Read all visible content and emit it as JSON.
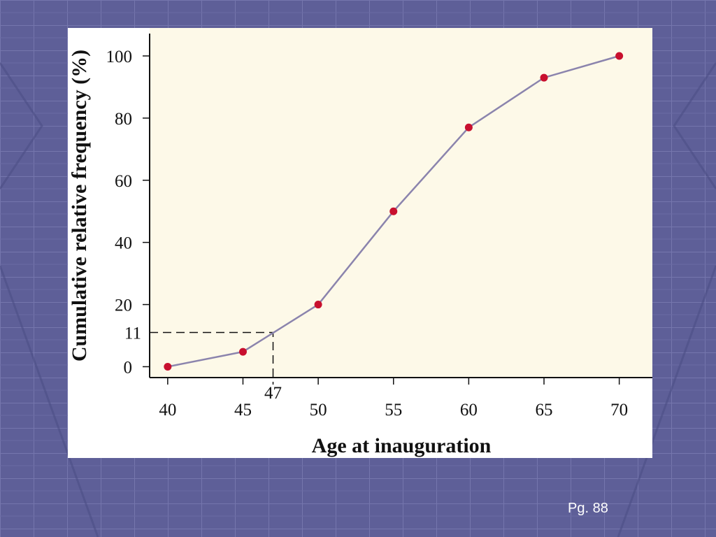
{
  "slide": {
    "page_label": "Pg. 88",
    "colors": {
      "background": "#5e5f98",
      "plot_background": "#fdf9e8",
      "line": "#8b84ad",
      "marker": "#c8102e"
    }
  },
  "chart_data": {
    "type": "line",
    "title": "",
    "xlabel": "Age at inauguration",
    "ylabel": "Cumulative relative frequency (%)",
    "xlim": [
      38.8,
      72.2
    ],
    "ylim": [
      -3.5,
      109
    ],
    "x_ticks": [
      40,
      45,
      50,
      55,
      60,
      65,
      70
    ],
    "x_tick_labels": [
      "40",
      "45",
      "50",
      "55",
      "60",
      "65",
      "70"
    ],
    "y_ticks": [
      0,
      20,
      40,
      60,
      80,
      100
    ],
    "y_tick_labels": [
      "0",
      "20",
      "40",
      "60",
      "80",
      "100"
    ],
    "series": [
      {
        "x": [
          40,
          45,
          50,
          55,
          60,
          65,
          70
        ],
        "y": [
          0,
          4.8,
          20,
          50,
          77,
          93,
          100
        ]
      }
    ],
    "annotations": [
      {
        "type": "reference",
        "x": 47,
        "y": 11,
        "x_label": "47",
        "y_label": "11"
      }
    ],
    "grid": false
  }
}
